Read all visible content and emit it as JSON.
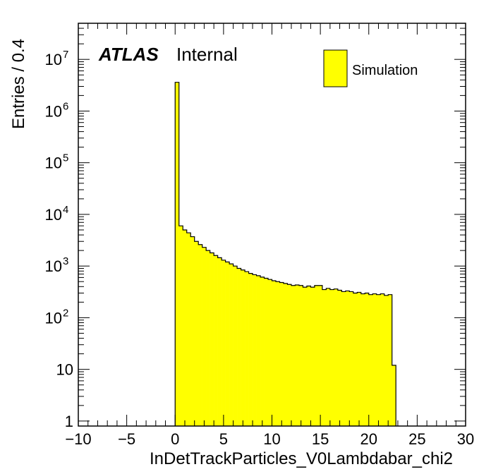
{
  "chart_data": {
    "type": "bar",
    "style": "histogram-step",
    "title": "",
    "xlabel": "InDetTrackParticles_V0Lambdabar_chi2",
    "ylabel": "Entries / 0.4",
    "xlim": [
      -10,
      30
    ],
    "ylim": [
      0.8,
      50000000
    ],
    "yscale": "log",
    "grid": false,
    "bin_width": 0.4,
    "x_ticks": [
      -10,
      -5,
      0,
      5,
      10,
      15,
      20,
      25,
      30
    ],
    "x_tick_labels": [
      "−10",
      "−5",
      "0",
      "5",
      "10",
      "15",
      "20",
      "25",
      "30"
    ],
    "y_ticks": [
      1,
      10,
      100,
      1000,
      10000,
      100000,
      1000000,
      10000000
    ],
    "y_tick_labels": [
      {
        "base": "1",
        "exp": ""
      },
      {
        "base": "10",
        "exp": ""
      },
      {
        "base": "10",
        "exp": "2"
      },
      {
        "base": "10",
        "exp": "3"
      },
      {
        "base": "10",
        "exp": "4"
      },
      {
        "base": "10",
        "exp": "5"
      },
      {
        "base": "10",
        "exp": "6"
      },
      {
        "base": "10",
        "exp": "7"
      }
    ],
    "legend": {
      "placement": "top-right",
      "entries": [
        {
          "label": "Simulation",
          "color": "#ffff00"
        }
      ]
    },
    "annotations": {
      "experiment": "ATLAS",
      "status": "Internal"
    },
    "series": [
      {
        "name": "Simulation",
        "color": "#ffff00",
        "edge_color": "#000000",
        "bin_edges_start": 0.0,
        "values": [
          3600000,
          6000,
          5000,
          4400,
          3700,
          3000,
          2600,
          2300,
          2000,
          1800,
          1600,
          1450,
          1300,
          1200,
          1100,
          1000,
          900,
          840,
          780,
          720,
          680,
          650,
          610,
          580,
          550,
          520,
          500,
          480,
          460,
          440,
          420,
          430,
          420,
          390,
          410,
          390,
          420,
          420,
          350,
          370,
          350,
          360,
          340,
          320,
          330,
          320,
          300,
          310,
          290,
          300,
          280,
          290,
          280,
          290,
          270,
          280,
          12
        ]
      }
    ]
  }
}
